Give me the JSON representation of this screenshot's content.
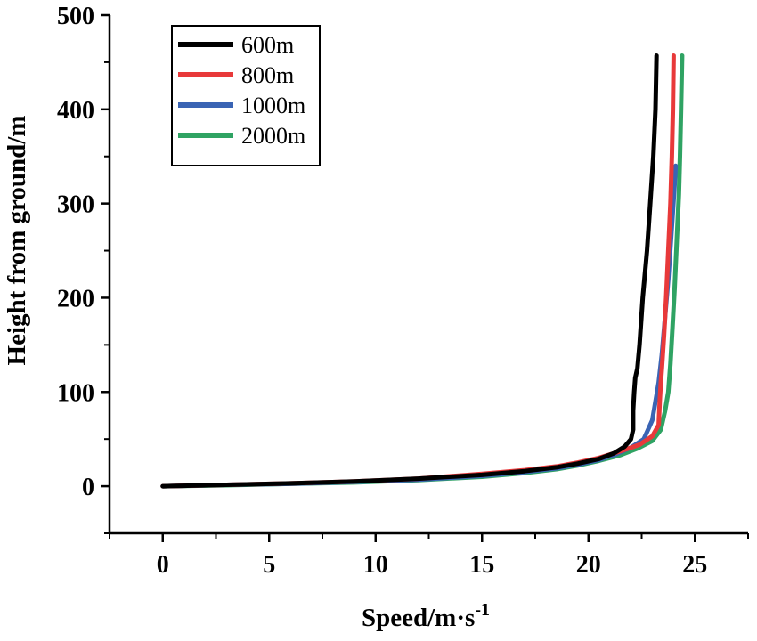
{
  "chart_data": {
    "type": "line",
    "title": "",
    "xlabel": "Speed/m·s",
    "xlabel_superscript": "-1",
    "ylabel": "Height from ground/m",
    "xlim": [
      -2.5,
      27.5
    ],
    "ylim": [
      -50,
      500
    ],
    "xticks": [
      0,
      5,
      10,
      15,
      20,
      25
    ],
    "yticks": [
      0,
      100,
      200,
      300,
      400,
      500
    ],
    "x_minor_step": 2.5,
    "y_minor_step": 50,
    "legend_position": "top-left",
    "series": [
      {
        "name": "600m",
        "color": "#000000",
        "points": [
          [
            0,
            0
          ],
          [
            3,
            1.5
          ],
          [
            6,
            3
          ],
          [
            9,
            5
          ],
          [
            12,
            8
          ],
          [
            15,
            12
          ],
          [
            17,
            16
          ],
          [
            18.5,
            20
          ],
          [
            19.5,
            24
          ],
          [
            20.5,
            29
          ],
          [
            21.2,
            35
          ],
          [
            21.7,
            42
          ],
          [
            22,
            50
          ],
          [
            22.1,
            60
          ],
          [
            22.1,
            80
          ],
          [
            22.15,
            100
          ],
          [
            22.2,
            115
          ],
          [
            22.3,
            125
          ],
          [
            22.4,
            150
          ],
          [
            22.55,
            200
          ],
          [
            22.75,
            250
          ],
          [
            22.9,
            300
          ],
          [
            23.05,
            350
          ],
          [
            23.15,
            400
          ],
          [
            23.2,
            457
          ]
        ]
      },
      {
        "name": "800m",
        "color": "#e8393a",
        "points": [
          [
            0,
            0
          ],
          [
            3,
            1.5
          ],
          [
            6,
            3
          ],
          [
            9,
            5
          ],
          [
            12,
            8
          ],
          [
            15,
            13
          ],
          [
            17,
            17
          ],
          [
            18.5,
            21
          ],
          [
            19.5,
            25
          ],
          [
            20.5,
            30
          ],
          [
            21.5,
            37
          ],
          [
            22.4,
            44
          ],
          [
            23,
            53
          ],
          [
            23.3,
            65
          ],
          [
            23.35,
            90
          ],
          [
            23.4,
            110
          ],
          [
            23.45,
            125
          ],
          [
            23.55,
            160
          ],
          [
            23.65,
            200
          ],
          [
            23.75,
            250
          ],
          [
            23.85,
            300
          ],
          [
            23.92,
            350
          ],
          [
            23.97,
            400
          ],
          [
            24,
            457
          ]
        ]
      },
      {
        "name": "1000m",
        "color": "#3a64b4",
        "points": [
          [
            0,
            0
          ],
          [
            3,
            1.5
          ],
          [
            6,
            2.5
          ],
          [
            9,
            4.5
          ],
          [
            12,
            7
          ],
          [
            15,
            11
          ],
          [
            17,
            15
          ],
          [
            18.5,
            19
          ],
          [
            19.5,
            23
          ],
          [
            20.5,
            28
          ],
          [
            21.3,
            34
          ],
          [
            22,
            41
          ],
          [
            22.6,
            50
          ],
          [
            23,
            70
          ],
          [
            23.15,
            90
          ],
          [
            23.3,
            110
          ],
          [
            23.45,
            140
          ],
          [
            23.6,
            180
          ],
          [
            23.75,
            220
          ],
          [
            23.9,
            270
          ],
          [
            24.05,
            320
          ],
          [
            24.1,
            340
          ]
        ]
      },
      {
        "name": "2000m",
        "color": "#2fa363",
        "points": [
          [
            0,
            0
          ],
          [
            3,
            1
          ],
          [
            6,
            2.5
          ],
          [
            9,
            4
          ],
          [
            12,
            6.5
          ],
          [
            15,
            10
          ],
          [
            17,
            14
          ],
          [
            18.5,
            18
          ],
          [
            19.5,
            22
          ],
          [
            20.5,
            27
          ],
          [
            21.5,
            33
          ],
          [
            22.3,
            40
          ],
          [
            23,
            48
          ],
          [
            23.4,
            60
          ],
          [
            23.6,
            80
          ],
          [
            23.75,
            100
          ],
          [
            23.85,
            130
          ],
          [
            23.95,
            170
          ],
          [
            24.05,
            210
          ],
          [
            24.15,
            260
          ],
          [
            24.25,
            310
          ],
          [
            24.3,
            350
          ],
          [
            24.35,
            400
          ],
          [
            24.4,
            457
          ]
        ]
      }
    ]
  }
}
